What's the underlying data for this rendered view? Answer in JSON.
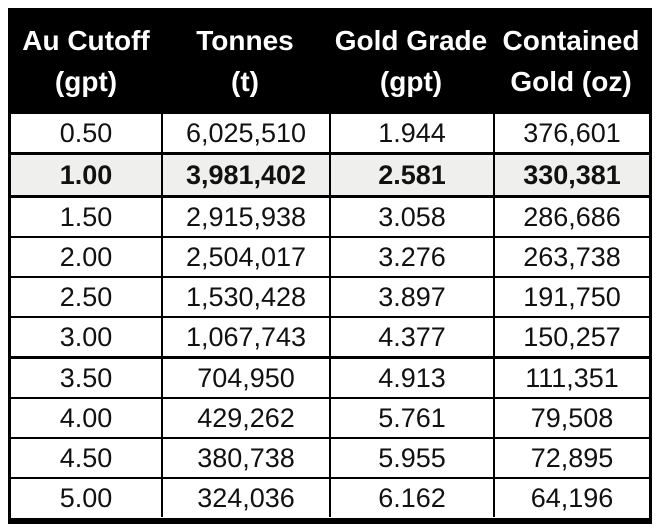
{
  "table": {
    "header": [
      {
        "line1": "Au Cutoff",
        "line2": "(gpt)"
      },
      {
        "line1": "Tonnes",
        "line2": "(t)"
      },
      {
        "line1": "Gold Grade",
        "line2": "(gpt)"
      },
      {
        "line1": "Contained",
        "line2": "Gold (oz)"
      }
    ],
    "rows": [
      {
        "cutoff": "0.50",
        "tonnes": "6,025,510",
        "grade": "1.944",
        "gold_oz": "376,601"
      },
      {
        "cutoff": "1.00",
        "tonnes": "3,981,402",
        "grade": "2.581",
        "gold_oz": "330,381"
      },
      {
        "cutoff": "1.50",
        "tonnes": "2,915,938",
        "grade": "3.058",
        "gold_oz": "286,686"
      },
      {
        "cutoff": "2.00",
        "tonnes": "2,504,017",
        "grade": "3.276",
        "gold_oz": "263,738"
      },
      {
        "cutoff": "2.50",
        "tonnes": "1,530,428",
        "grade": "3.897",
        "gold_oz": "191,750"
      },
      {
        "cutoff": "3.00",
        "tonnes": "1,067,743",
        "grade": "4.377",
        "gold_oz": "150,257"
      },
      {
        "cutoff": "3.50",
        "tonnes": "704,950",
        "grade": "4.913",
        "gold_oz": "111,351"
      },
      {
        "cutoff": "4.00",
        "tonnes": "429,262",
        "grade": "5.761",
        "gold_oz": "79,508"
      },
      {
        "cutoff": "4.50",
        "tonnes": "380,738",
        "grade": "5.955",
        "gold_oz": "72,895"
      },
      {
        "cutoff": "5.00",
        "tonnes": "324,036",
        "grade": "6.162",
        "gold_oz": "64,196"
      }
    ],
    "highlighted_row_index": 1
  },
  "colors": {
    "header_bg": "#000000",
    "header_text": "#ffffff",
    "row_text": "#111111",
    "highlight_row_bg": "#efefed",
    "border": "#000000",
    "page_bg": "#ffffff"
  }
}
